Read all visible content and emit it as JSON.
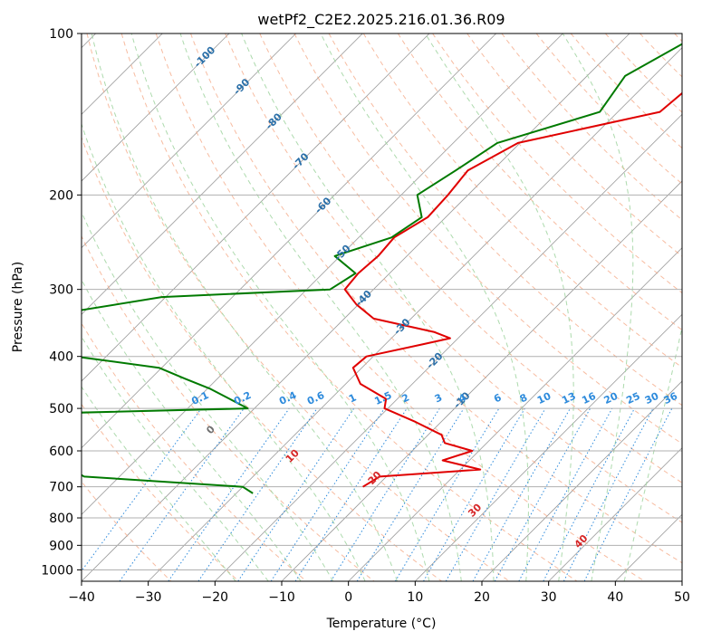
{
  "chart_data": {
    "type": "line",
    "title": "wetPf2_C2E2.2025.216.01.36.R09",
    "xlabel": "Temperature (°C)",
    "ylabel": "Pressure (hPa)",
    "xlim": [
      -40,
      50
    ],
    "ylim": [
      1050,
      100
    ],
    "y_scale": "log",
    "x_ticks": [
      -40,
      -30,
      -20,
      -10,
      0,
      10,
      20,
      30,
      40,
      50
    ],
    "y_ticks": [
      100,
      200,
      300,
      400,
      500,
      600,
      700,
      800,
      900,
      1000
    ],
    "grid": true,
    "colors": {
      "temperature": "#e00000",
      "dewpoint": "#007a00",
      "isotherm": "#9a9a9a",
      "dry_adiabat": "#f4a582",
      "moist_adiabat": "#9fd49f",
      "mixing_ratio": "#2e8bdc",
      "isotherm_label": "#2a6fa8",
      "theta_label": "#d62728",
      "zero_label": "#707070",
      "gridline": "#b0b0b0"
    },
    "series": [
      {
        "id": "temperature",
        "points": [
          [
            100,
            -20.4
          ],
          [
            120,
            -22.7
          ],
          [
            140,
            -23.7
          ],
          [
            160,
            -40.3
          ],
          [
            180,
            -43.7
          ],
          [
            200,
            -43.0
          ],
          [
            220,
            -42.7
          ],
          [
            240,
            -44.7
          ],
          [
            260,
            -44.3
          ],
          [
            280,
            -44.7
          ],
          [
            300,
            -44.3
          ],
          [
            320,
            -40.3
          ],
          [
            340,
            -35.6
          ],
          [
            360,
            -24.6
          ],
          [
            370,
            -21.2
          ],
          [
            380,
            -24.5
          ],
          [
            400,
            -31.0
          ],
          [
            420,
            -31.3
          ],
          [
            450,
            -27.8
          ],
          [
            480,
            -21.7
          ],
          [
            500,
            -20.5
          ],
          [
            530,
            -13.8
          ],
          [
            560,
            -8.0
          ],
          [
            580,
            -6.3
          ],
          [
            600,
            -1.0
          ],
          [
            625,
            -4.0
          ],
          [
            650,
            3.0
          ],
          [
            670,
            -11.0
          ],
          [
            700,
            -12.0
          ]
        ]
      },
      {
        "id": "dewpoint",
        "points": [
          [
            100,
            -29.3
          ],
          [
            120,
            -34.3
          ],
          [
            140,
            -32.7
          ],
          [
            160,
            -43.4
          ],
          [
            180,
            -45.5
          ],
          [
            200,
            -47.6
          ],
          [
            220,
            -43.6
          ],
          [
            240,
            -45.1
          ],
          [
            260,
            -50.8
          ],
          [
            280,
            -45.1
          ],
          [
            300,
            -46.5
          ],
          [
            310,
            -70.6
          ],
          [
            340,
            -87.2
          ],
          [
            370,
            -87.5
          ],
          [
            400,
            -74.7
          ],
          [
            420,
            -60.4
          ],
          [
            440,
            -54.9
          ],
          [
            460,
            -49.5
          ],
          [
            500,
            -41.0
          ],
          [
            510,
            -68.0
          ],
          [
            540,
            -66.0
          ],
          [
            580,
            -66.2
          ],
          [
            620,
            -62.7
          ],
          [
            670,
            -55.3
          ],
          [
            700,
            -30.0
          ],
          [
            720,
            -27.5
          ]
        ]
      }
    ],
    "isotherm_labels": [
      "-100",
      "-90",
      "-80",
      "-70",
      "-60",
      "-50",
      "-40",
      "-30",
      "-20",
      "-10"
    ],
    "mixing_ratio_labels": [
      "0.1",
      "0.2",
      "0.4",
      "0.6",
      "1",
      "1.5",
      "2",
      "3",
      "4",
      "6",
      "8",
      "10",
      "13",
      "16",
      "20",
      "25",
      "30",
      "36"
    ],
    "theta_labels": [
      "0",
      "10",
      "20",
      "30",
      "40"
    ]
  }
}
